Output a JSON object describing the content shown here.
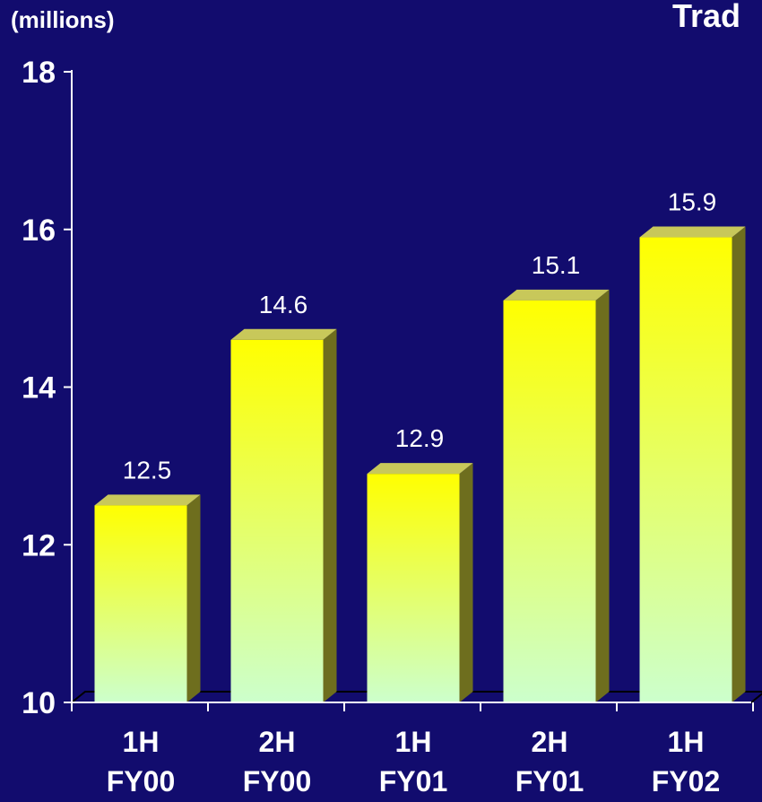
{
  "colors": {
    "background": "#120c6e",
    "axis": "#ffffff",
    "text": "#ffffff",
    "bar_top": "#ffff00",
    "bar_bottom": "#ccffcc",
    "bar_side": "#6e6e1e",
    "bar_cap": "#c8c85a"
  },
  "chart_data": {
    "type": "bar",
    "title": "Trad",
    "ylabel": "(millions)",
    "xlabel": "",
    "ylim": [
      10,
      18
    ],
    "yticks": [
      10,
      12,
      14,
      16,
      18
    ],
    "grid": false,
    "categories": [
      [
        "1H",
        "FY00"
      ],
      [
        "2H",
        "FY00"
      ],
      [
        "1H",
        "FY01"
      ],
      [
        "2H",
        "FY01"
      ],
      [
        "1H",
        "FY02"
      ]
    ],
    "values": [
      12.5,
      14.6,
      12.9,
      15.1,
      15.9
    ],
    "data_labels": [
      "12.5",
      "14.6",
      "12.9",
      "15.1",
      "15.9"
    ]
  }
}
